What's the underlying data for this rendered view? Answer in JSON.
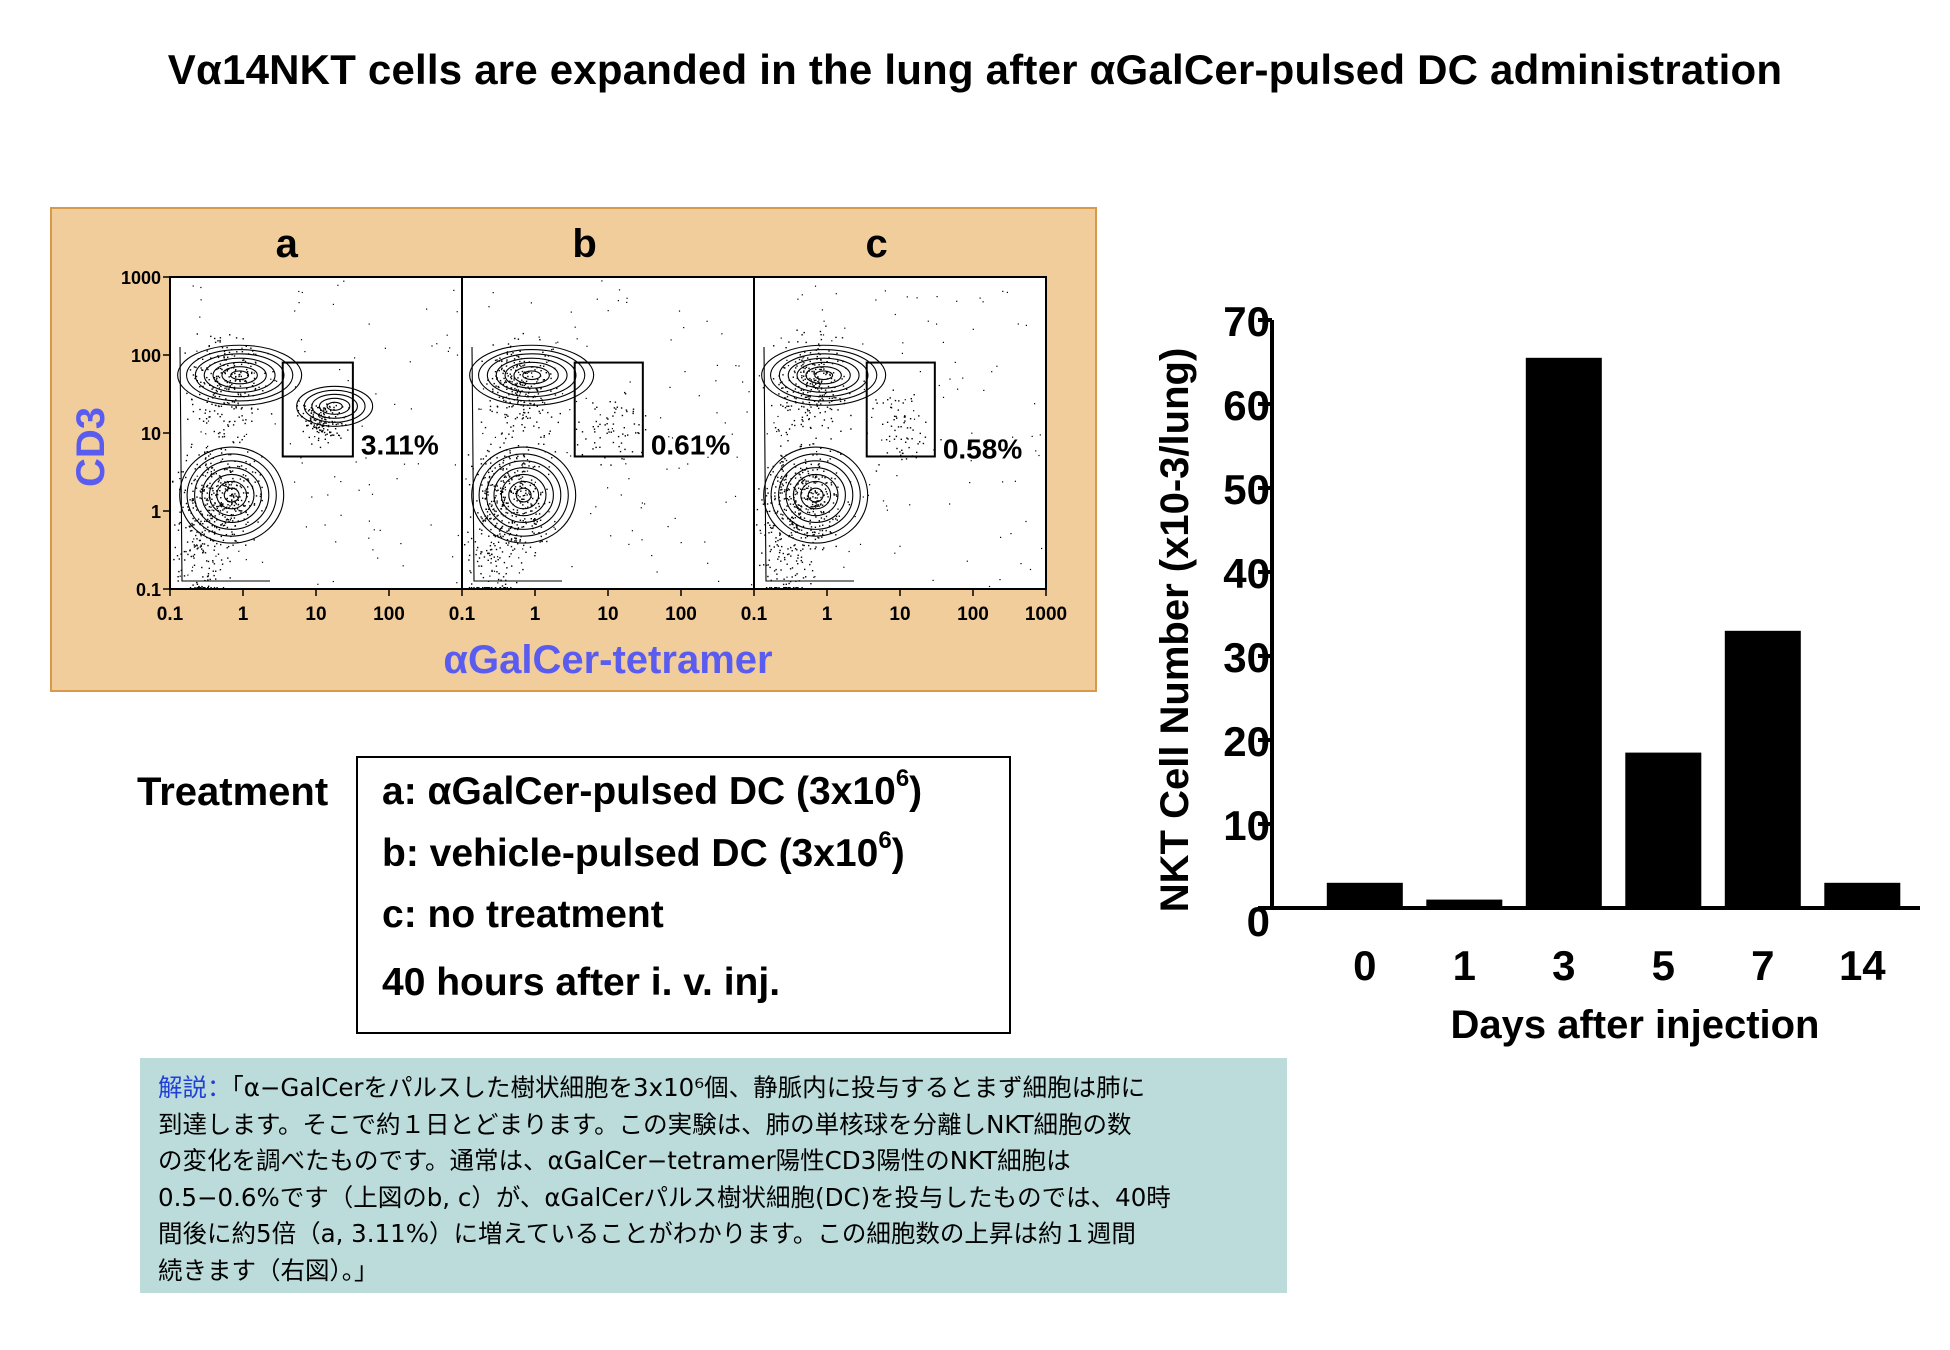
{
  "title": "Vα14NKT cells are expanded in the lung after αGalCer-pulsed DC administration",
  "flow": {
    "panels": [
      {
        "letter": "a",
        "percent": "3.11%"
      },
      {
        "letter": "b",
        "percent": "0.61%"
      },
      {
        "letter": "c",
        "percent": "0.58%"
      }
    ],
    "y_label": "CD3",
    "x_label": "αGalCer-tetramer",
    "y_ticks": [
      "1000",
      "100",
      "10",
      "1",
      "0.1"
    ],
    "x_ticks_ab": [
      "0.1",
      "1",
      "10",
      "100"
    ],
    "x_ticks_c": [
      "0.1",
      "1",
      "10",
      "100",
      "1000"
    ],
    "axis_label_color": "#5a5cf0"
  },
  "treatment": {
    "label": "Treatment",
    "lines": [
      {
        "prefix": "a: αGalCer-pulsed DC (3x10",
        "sup": "6",
        "suffix": ")"
      },
      {
        "prefix": "b: vehicle-pulsed DC (3x10",
        "sup": "6",
        "suffix": ")"
      },
      {
        "prefix": "c: no treatment",
        "sup": "",
        "suffix": ""
      },
      {
        "prefix": "40 hours after i. v. inj.",
        "sup": "",
        "suffix": ""
      }
    ]
  },
  "note": {
    "lead": "解説：",
    "body": "「α−GalCerをパルスした樹状細胞を3x10⁶個、静脈内に投与するとまず細胞は肺に\n到達します。そこで約１日とどまります。この実験は、肺の単核球を分離しNKT細胞の数\nの変化を調べたものです。通常は、αGalCer−tetramer陽性CD3陽性のNKT細胞は\n0.5−0.6%です（上図のb, c）が、αGalCerパルス樹状細胞(DC)を投与したものでは、40時\n間後に約5倍（a, 3.11%）に増えていることがわかります。この細胞数の上昇は約１週間\n続きます（右図）。」",
    "background": "#bcdcdc"
  },
  "chart_data": {
    "type": "bar",
    "categories": [
      "0",
      "1",
      "3",
      "5",
      "7",
      "14"
    ],
    "values": [
      3,
      1,
      65.5,
      18.5,
      33,
      3
    ],
    "title": "",
    "xlabel": "Days after injection",
    "ylabel": "NKT Cell Number (x10-3/lung)",
    "ylim": [
      0,
      70
    ],
    "y_ticks": [
      "0",
      "10",
      "20",
      "30",
      "40",
      "50",
      "60",
      "70"
    ],
    "grid": false,
    "bar_color": "#000000"
  }
}
